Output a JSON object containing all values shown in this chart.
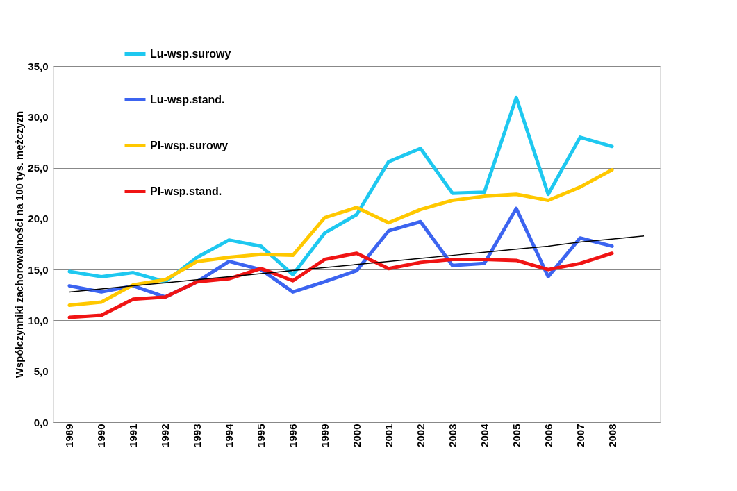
{
  "chart_data": {
    "type": "line",
    "ylabel": "Współczynniki zachorowalności na 100 tys. mężczyzn",
    "categories": [
      "1989",
      "1990",
      "1991",
      "1992",
      "1993",
      "1994",
      "1995",
      "1996",
      "1999",
      "2000",
      "2001",
      "2002",
      "2003",
      "2004",
      "2005",
      "2006",
      "2007",
      "2008",
      null
    ],
    "series": [
      {
        "name": "Lu-wsp.surowy",
        "color": "#1ec8f0",
        "values": [
          14.8,
          14.3,
          14.7,
          13.8,
          16.2,
          17.9,
          17.3,
          14.5,
          18.6,
          20.4,
          25.6,
          26.9,
          22.5,
          22.6,
          31.9,
          22.4,
          28.0,
          27.1,
          null
        ]
      },
      {
        "name": "Lu-wsp.stand.",
        "color": "#3c64f0",
        "values": [
          13.4,
          12.8,
          13.4,
          12.3,
          13.8,
          15.8,
          15.0,
          12.8,
          13.8,
          14.9,
          18.8,
          19.7,
          15.4,
          15.6,
          21.0,
          14.3,
          18.1,
          17.3,
          null
        ]
      },
      {
        "name": "Pl-wsp.surowy",
        "color": "#ffc800",
        "values": [
          11.5,
          11.8,
          13.5,
          14.0,
          15.8,
          16.2,
          16.5,
          16.4,
          20.1,
          21.1,
          19.6,
          20.9,
          21.8,
          22.2,
          22.4,
          21.8,
          23.1,
          24.8,
          null
        ]
      },
      {
        "name": "Pl-wsp.stand.",
        "color": "#f01414",
        "values": [
          10.3,
          10.5,
          12.1,
          12.3,
          13.8,
          14.1,
          15.1,
          13.9,
          16.0,
          16.6,
          15.1,
          15.7,
          16.0,
          16.0,
          15.9,
          15.0,
          15.6,
          16.6,
          null
        ]
      },
      {
        "type": "line",
        "color": "#000000",
        "values": [
          12.8,
          13.1,
          13.4,
          13.7,
          14.0,
          14.3,
          14.6,
          14.9,
          15.2,
          15.5,
          15.8,
          16.1,
          16.4,
          16.7,
          17.0,
          17.3,
          17.7,
          18.0,
          18.3
        ]
      }
    ],
    "ylim": [
      0,
      35
    ],
    "yticks": [
      {
        "value": 0,
        "label": "0,0"
      },
      {
        "value": 5,
        "label": "5,0"
      },
      {
        "value": 10,
        "label": "10,0"
      },
      {
        "value": 15,
        "label": "15,0"
      },
      {
        "value": 20,
        "label": "20,0"
      },
      {
        "value": 25,
        "label": "25,0"
      },
      {
        "value": 30,
        "label": "30,0"
      },
      {
        "value": 35,
        "label": "35,0"
      }
    ],
    "grid": "y",
    "legend": "top left",
    "marker": "none",
    "line_style": "solid"
  }
}
